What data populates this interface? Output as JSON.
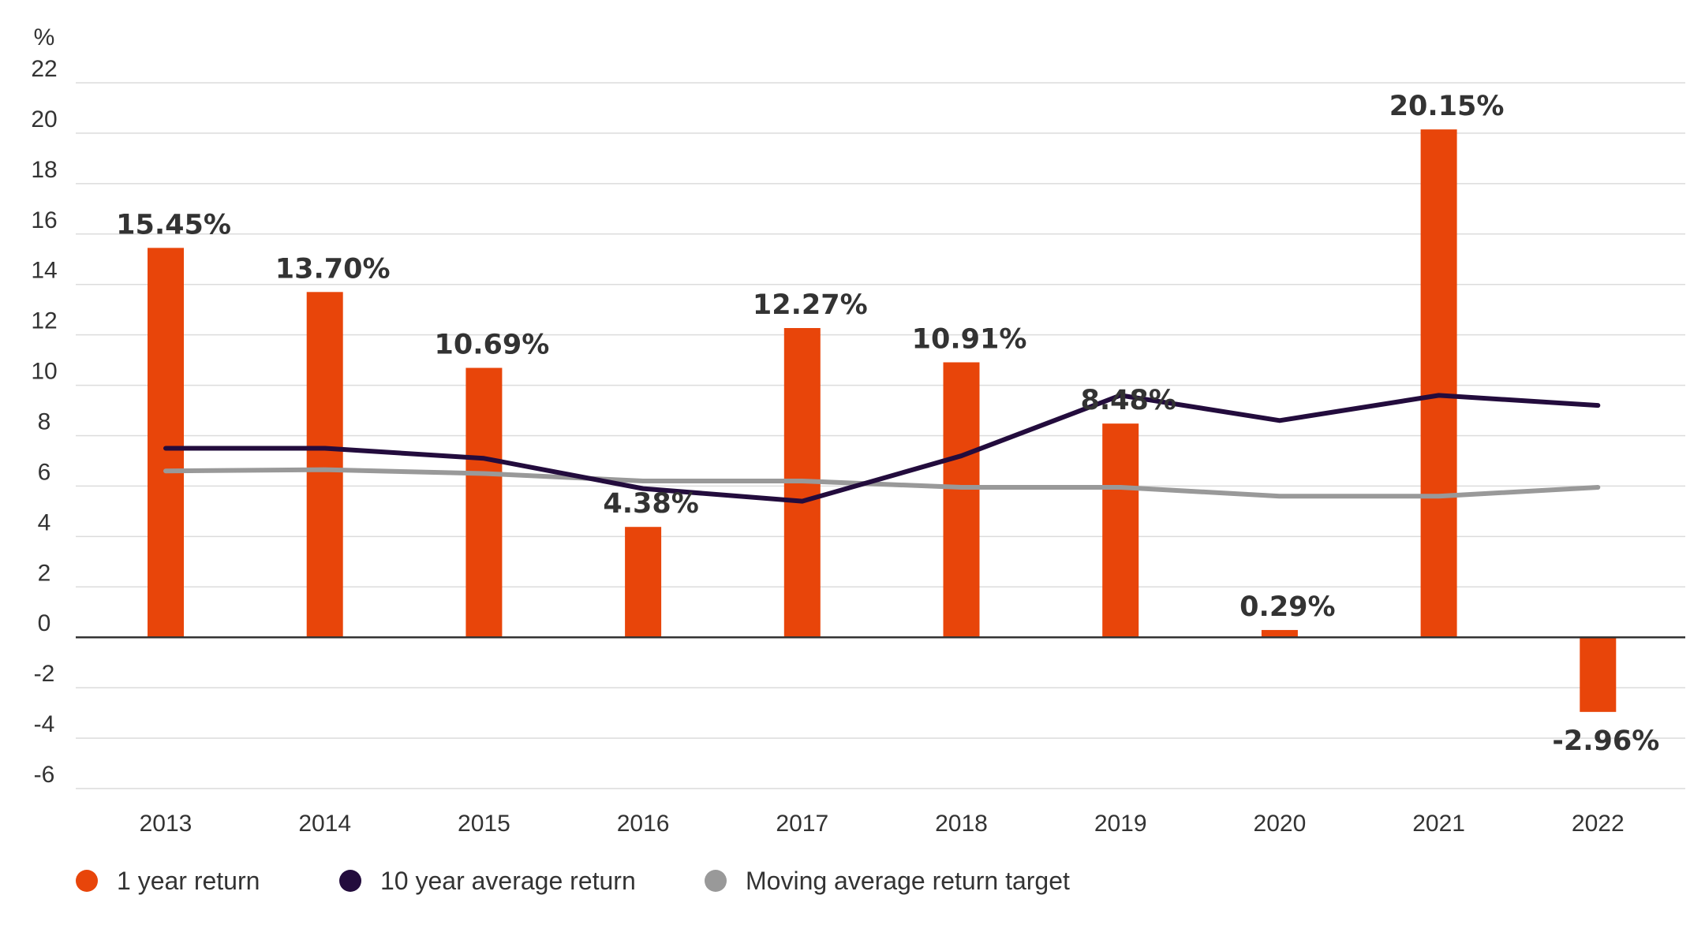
{
  "chart_data": {
    "type": "bar",
    "title": "",
    "xlabel": "",
    "ylabel": "%",
    "ylim": [
      -6,
      22
    ],
    "yticks": [
      22,
      20,
      18,
      16,
      14,
      12,
      10,
      8,
      6,
      4,
      2,
      0,
      -2,
      -4,
      -6
    ],
    "grid": true,
    "legend_position": "bottom-left",
    "categories": [
      "2013",
      "2014",
      "2015",
      "2016",
      "2017",
      "2018",
      "2019",
      "2020",
      "2021",
      "2022"
    ],
    "series": [
      {
        "name": "1 year return",
        "type": "bar",
        "color": "#E8450A",
        "values": [
          15.45,
          13.7,
          10.69,
          4.38,
          12.27,
          10.91,
          8.48,
          0.29,
          20.15,
          -2.96
        ],
        "data_labels": [
          "15.45%",
          "13.70%",
          "10.69%",
          "4.38%",
          "12.27%",
          "10.91%",
          "8.48%",
          "0.29%",
          "20.15%",
          "-2.96%"
        ]
      },
      {
        "name": "10 year average return",
        "type": "line",
        "color": "#230C3D",
        "values": [
          7.5,
          7.5,
          7.1,
          5.9,
          5.4,
          7.2,
          9.6,
          8.6,
          9.6,
          9.2
        ]
      },
      {
        "name": "Moving average return target",
        "type": "line",
        "color": "#999999",
        "values": [
          6.6,
          6.65,
          6.5,
          6.2,
          6.2,
          5.95,
          5.95,
          5.6,
          5.6,
          5.95
        ]
      }
    ]
  }
}
